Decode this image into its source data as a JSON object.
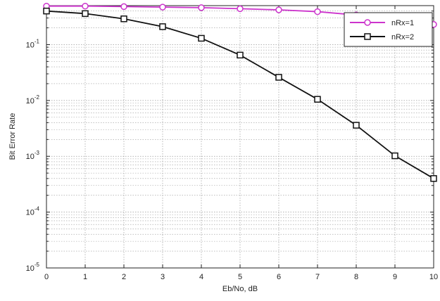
{
  "chart_data": {
    "type": "line",
    "title": "",
    "xlabel": "Eb/No, dB",
    "ylabel": "Bit Error Rate",
    "x": [
      0,
      1,
      2,
      3,
      4,
      5,
      6,
      7,
      8,
      9,
      10
    ],
    "xlim": [
      0,
      10
    ],
    "ylim": [
      1e-05,
      0.5
    ],
    "yscale": "log",
    "grid": true,
    "legend_position": "top-right",
    "x_ticks": [
      "0",
      "1",
      "2",
      "3",
      "4",
      "5",
      "6",
      "7",
      "8",
      "9",
      "10"
    ],
    "y_ticks": [
      {
        "base": "10",
        "exp": "-1",
        "value": 0.1
      },
      {
        "base": "10",
        "exp": "-2",
        "value": 0.01
      },
      {
        "base": "10",
        "exp": "-3",
        "value": 0.001
      },
      {
        "base": "10",
        "exp": "-4",
        "value": 0.0001
      },
      {
        "base": "10",
        "exp": "-5",
        "value": 1e-05
      }
    ],
    "series": [
      {
        "name": "nRx=1",
        "color": "#cc33cc",
        "marker": "circle",
        "values": [
          0.49,
          0.49,
          0.48,
          0.47,
          0.46,
          0.44,
          0.42,
          0.39,
          0.34,
          0.29,
          0.23
        ]
      },
      {
        "name": "nRx=2",
        "color": "#111111",
        "marker": "square",
        "values": [
          0.4,
          0.36,
          0.29,
          0.21,
          0.13,
          0.065,
          0.026,
          0.0105,
          0.0036,
          0.00102,
          0.0004
        ]
      }
    ]
  }
}
